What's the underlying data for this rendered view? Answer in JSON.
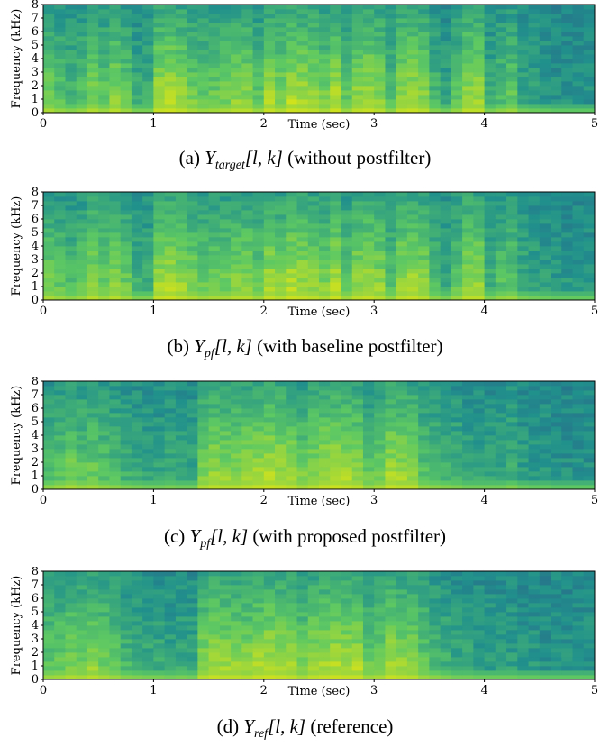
{
  "colors": {
    "low": "#2d4e8a",
    "mid": "#21918c",
    "high": "#5ec962",
    "peak": "#d2e21b",
    "frame": "#000000"
  },
  "chart_data": [
    {
      "type": "heatmap",
      "title": "",
      "caption": {
        "prefix": "(a)",
        "var": "Y",
        "sub": "target",
        "args": "[l, k]",
        "note": "(without postfilter)"
      },
      "xlabel": "Time (sec)",
      "ylabel": "Frequency (kHz)",
      "xlim": [
        0,
        5
      ],
      "ylim": [
        0,
        8
      ],
      "xticks": [
        "0",
        "1",
        "2",
        "3",
        "4",
        "5"
      ],
      "yticks": [
        "0",
        "1",
        "2",
        "3",
        "4",
        "5",
        "6",
        "7",
        "8"
      ],
      "energy": [
        0.7,
        0.55,
        0.45,
        0.55,
        0.75,
        0.6,
        0.8,
        0.6,
        0.35,
        0.35,
        0.9,
        0.95,
        0.85,
        0.7,
        0.6,
        0.65,
        0.7,
        0.8,
        0.8,
        0.6,
        0.9,
        0.75,
        0.95,
        0.9,
        0.85,
        0.7,
        0.95,
        0.6,
        0.85,
        0.9,
        0.8,
        0.5,
        0.85,
        0.9,
        0.8,
        0.45,
        0.3,
        0.55,
        0.85,
        0.85,
        0.35,
        0.5,
        0.6,
        0.3,
        0.25,
        0.2,
        0.15,
        0.15,
        0.15,
        0.15
      ]
    },
    {
      "type": "heatmap",
      "title": "",
      "caption": {
        "prefix": "(b)",
        "var": "Y",
        "sub": "pf",
        "args": "[l, k]",
        "note": "(with baseline postfilter)"
      },
      "xlabel": "Time (sec)",
      "ylabel": "Frequency (kHz)",
      "xlim": [
        0,
        5
      ],
      "ylim": [
        0,
        8
      ],
      "xticks": [
        "0",
        "1",
        "2",
        "3",
        "4",
        "5"
      ],
      "yticks": [
        "0",
        "1",
        "2",
        "3",
        "4",
        "5",
        "6",
        "7",
        "8"
      ],
      "energy": [
        0.7,
        0.6,
        0.5,
        0.6,
        0.8,
        0.65,
        0.8,
        0.65,
        0.4,
        0.4,
        0.9,
        0.95,
        0.85,
        0.75,
        0.65,
        0.7,
        0.7,
        0.8,
        0.8,
        0.65,
        0.9,
        0.8,
        0.95,
        0.9,
        0.85,
        0.75,
        0.95,
        0.65,
        0.85,
        0.9,
        0.8,
        0.55,
        0.85,
        0.9,
        0.8,
        0.5,
        0.35,
        0.6,
        0.85,
        0.85,
        0.4,
        0.55,
        0.6,
        0.35,
        0.3,
        0.25,
        0.2,
        0.2,
        0.2,
        0.2
      ]
    },
    {
      "type": "heatmap",
      "title": "",
      "caption": {
        "prefix": "(c)",
        "var": "Y",
        "sub": "pf",
        "args": "[l, k]",
        "note": "(with proposed postfilter)"
      },
      "xlabel": "Time (sec)",
      "ylabel": "Frequency (kHz)",
      "xlim": [
        0,
        5
      ],
      "ylim": [
        0,
        8
      ],
      "xticks": [
        "0",
        "1",
        "2",
        "3",
        "4",
        "5"
      ],
      "yticks": [
        "0",
        "1",
        "2",
        "3",
        "4",
        "5",
        "6",
        "7",
        "8"
      ],
      "energy": [
        0.5,
        0.6,
        0.7,
        0.6,
        0.65,
        0.55,
        0.5,
        0.4,
        0.35,
        0.3,
        0.3,
        0.35,
        0.3,
        0.3,
        0.75,
        0.85,
        0.8,
        0.8,
        0.85,
        0.9,
        0.95,
        0.9,
        0.85,
        0.7,
        0.8,
        0.9,
        0.95,
        0.9,
        0.85,
        0.6,
        0.7,
        0.9,
        0.85,
        0.85,
        0.55,
        0.5,
        0.45,
        0.4,
        0.3,
        0.3,
        0.3,
        0.3,
        0.4,
        0.25,
        0.2,
        0.2,
        0.15,
        0.15,
        0.15,
        0.15
      ]
    },
    {
      "type": "heatmap",
      "title": "",
      "caption": {
        "prefix": "(d)",
        "var": "Y",
        "sub": "ref",
        "args": "[l, k]",
        "note": "(reference)"
      },
      "xlabel": "Time (sec)",
      "ylabel": "Frequency (kHz)",
      "xlim": [
        0,
        5
      ],
      "ylim": [
        0,
        8
      ],
      "xticks": [
        "0",
        "1",
        "2",
        "3",
        "4",
        "5"
      ],
      "yticks": [
        "0",
        "1",
        "2",
        "3",
        "4",
        "5",
        "6",
        "7",
        "8"
      ],
      "energy": [
        0.6,
        0.65,
        0.75,
        0.7,
        0.8,
        0.7,
        0.6,
        0.45,
        0.4,
        0.35,
        0.35,
        0.3,
        0.35,
        0.3,
        0.8,
        0.9,
        0.85,
        0.85,
        0.8,
        0.9,
        0.95,
        0.9,
        0.85,
        0.7,
        0.85,
        0.9,
        0.95,
        0.9,
        0.9,
        0.65,
        0.7,
        0.9,
        0.85,
        0.8,
        0.6,
        0.5,
        0.4,
        0.3,
        0.3,
        0.25,
        0.25,
        0.25,
        0.25,
        0.2,
        0.2,
        0.15,
        0.15,
        0.15,
        0.15,
        0.15
      ]
    }
  ]
}
